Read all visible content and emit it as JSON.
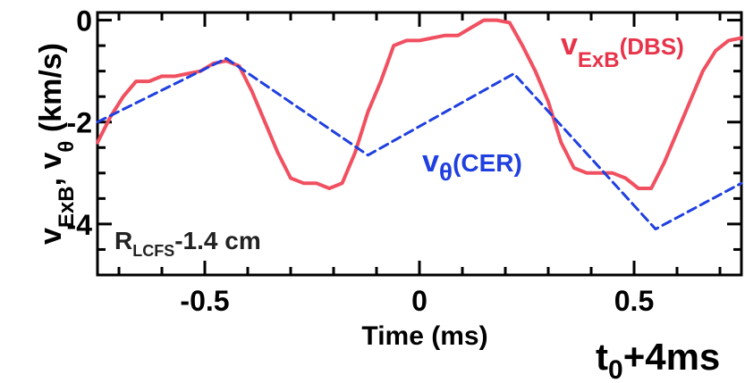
{
  "chart_data": {
    "type": "line",
    "title": "",
    "xlabel": "Time (ms)",
    "ylabel": {
      "prefix": "v",
      "sub1": "ExB",
      "mid": ", v",
      "sub2": "θ",
      "suffix": " (km/s)"
    },
    "xlim": [
      -0.75,
      0.75
    ],
    "ylim": [
      -5.0,
      0.15
    ],
    "x_ticks": [
      -0.5,
      0,
      0.5
    ],
    "x_tick_labels": [
      "-0.5",
      "0",
      "0.5"
    ],
    "y_ticks": [
      0,
      -2,
      -4
    ],
    "y_tick_labels": [
      "0",
      "-2",
      "-4"
    ],
    "grid": false,
    "series": [
      {
        "name": "ExB(DBS)",
        "label_main": "v",
        "label_sub": "ExB",
        "label_tail": "(DBS)",
        "color": "#f05060",
        "style": "solid",
        "x": [
          -0.75,
          -0.72,
          -0.69,
          -0.66,
          -0.63,
          -0.6,
          -0.57,
          -0.54,
          -0.51,
          -0.48,
          -0.45,
          -0.42,
          -0.39,
          -0.36,
          -0.33,
          -0.3,
          -0.27,
          -0.24,
          -0.21,
          -0.18,
          -0.15,
          -0.12,
          -0.09,
          -0.06,
          -0.03,
          0.0,
          0.03,
          0.06,
          0.09,
          0.12,
          0.15,
          0.18,
          0.21,
          0.24,
          0.27,
          0.3,
          0.33,
          0.36,
          0.39,
          0.42,
          0.45,
          0.48,
          0.51,
          0.54,
          0.57,
          0.6,
          0.63,
          0.66,
          0.69,
          0.72,
          0.75
        ],
        "y": [
          -2.4,
          -1.9,
          -1.5,
          -1.2,
          -1.2,
          -1.1,
          -1.1,
          -1.05,
          -1.0,
          -0.85,
          -0.8,
          -0.9,
          -1.4,
          -2.0,
          -2.6,
          -3.1,
          -3.2,
          -3.2,
          -3.3,
          -3.2,
          -2.6,
          -1.8,
          -1.2,
          -0.5,
          -0.4,
          -0.4,
          -0.35,
          -0.3,
          -0.3,
          -0.15,
          0.0,
          0.0,
          -0.05,
          -0.5,
          -1.0,
          -1.6,
          -2.4,
          -2.9,
          -3.0,
          -3.0,
          -3.0,
          -3.1,
          -3.3,
          -3.3,
          -2.8,
          -2.2,
          -1.6,
          -1.0,
          -0.6,
          -0.4,
          -0.35
        ]
      },
      {
        "name": "θ(CER)",
        "label_main": "v",
        "label_sub": "θ",
        "label_tail": "(CER)",
        "color": "#1f3fe0",
        "style": "dashed",
        "x": [
          -0.75,
          -0.45,
          -0.12,
          0.22,
          0.55,
          0.75
        ],
        "y": [
          -2.0,
          -0.75,
          -2.65,
          -1.05,
          -4.1,
          -3.2
        ]
      }
    ],
    "annotations": [
      {
        "main": "R",
        "sub": "LCFS",
        "tail": "-1.4 cm"
      },
      {
        "main": "t",
        "sub": "0",
        "tail": "+4ms"
      }
    ]
  }
}
